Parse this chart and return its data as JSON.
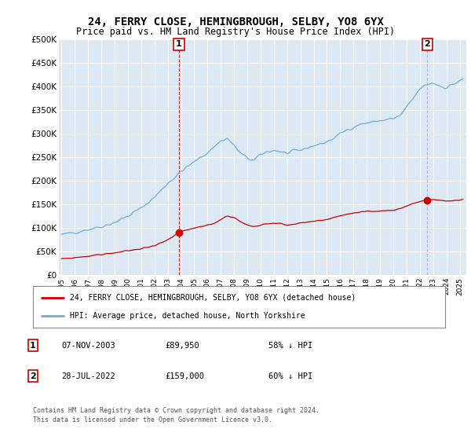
{
  "title": "24, FERRY CLOSE, HEMINGBROUGH, SELBY, YO8 6YX",
  "subtitle": "Price paid vs. HM Land Registry's House Price Index (HPI)",
  "hpi_color": "#6baed6",
  "property_color": "#cc0000",
  "vline1_color": "#cc0000",
  "vline2_color": "#aaaacc",
  "plot_bg_color": "#dce9f5",
  "ylim": [
    0,
    500000
  ],
  "sale1_year": 2003.85,
  "sale1_value": 89950,
  "sale2_year": 2022.57,
  "sale2_value": 159000,
  "sale1_date": "07-NOV-2003",
  "sale1_price": "£89,950",
  "sale1_hpi_text": "58% ↓ HPI",
  "sale2_date": "28-JUL-2022",
  "sale2_price": "£159,000",
  "sale2_hpi_text": "60% ↓ HPI",
  "legend_property_label": "24, FERRY CLOSE, HEMINGBROUGH, SELBY, YO8 6YX (detached house)",
  "legend_hpi_label": "HPI: Average price, detached house, North Yorkshire",
  "footer_line1": "Contains HM Land Registry data © Crown copyright and database right 2024.",
  "footer_line2": "This data is licensed under the Open Government Licence v3.0.",
  "ytick_values": [
    0,
    50000,
    100000,
    150000,
    200000,
    250000,
    300000,
    350000,
    400000,
    450000,
    500000
  ],
  "ytick_labels": [
    "£0",
    "£50K",
    "£100K",
    "£150K",
    "£200K",
    "£250K",
    "£300K",
    "£350K",
    "£400K",
    "£450K",
    "£500K"
  ],
  "xtick_years": [
    1995,
    1996,
    1997,
    1998,
    1999,
    2000,
    2001,
    2002,
    2003,
    2004,
    2005,
    2006,
    2007,
    2008,
    2009,
    2010,
    2011,
    2012,
    2013,
    2014,
    2015,
    2016,
    2017,
    2018,
    2019,
    2020,
    2021,
    2022,
    2023,
    2024,
    2025
  ]
}
